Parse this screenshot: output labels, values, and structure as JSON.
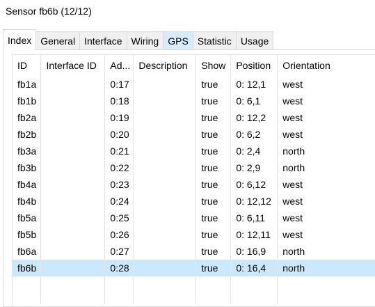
{
  "window": {
    "title": "Sensor fb6b (12/12)"
  },
  "tabs": [
    {
      "label": "Index",
      "active": true
    },
    {
      "label": "General"
    },
    {
      "label": "Interface"
    },
    {
      "label": "Wiring"
    },
    {
      "label": "GPS",
      "hover": true
    },
    {
      "label": "Statistic"
    },
    {
      "label": "Usage"
    }
  ],
  "table": {
    "columns": [
      "ID",
      "Interface ID",
      "Ad...",
      "Description",
      "Show",
      "Position",
      "Orientation"
    ],
    "rows": [
      [
        "fb1a",
        "",
        "0:17",
        "",
        "true",
        "0: 12,1",
        "west"
      ],
      [
        "fb1b",
        "",
        "0:18",
        "",
        "true",
        "0: 6,1",
        "west"
      ],
      [
        "fb2a",
        "",
        "0:19",
        "",
        "true",
        "0: 12,2",
        "west"
      ],
      [
        "fb2b",
        "",
        "0:20",
        "",
        "true",
        "0: 6,2",
        "west"
      ],
      [
        "fb3a",
        "",
        "0:21",
        "",
        "true",
        "0: 2,4",
        "north"
      ],
      [
        "fb3b",
        "",
        "0:22",
        "",
        "true",
        "0: 2,9",
        "north"
      ],
      [
        "fb4a",
        "",
        "0:23",
        "",
        "true",
        "0: 6,12",
        "west"
      ],
      [
        "fb4b",
        "",
        "0:24",
        "",
        "true",
        "0: 12,12",
        "west"
      ],
      [
        "fb5a",
        "",
        "0:25",
        "",
        "true",
        "0: 6,11",
        "west"
      ],
      [
        "fb5b",
        "",
        "0:26",
        "",
        "true",
        "0: 12,11",
        "west"
      ],
      [
        "fb6a",
        "",
        "0:27",
        "",
        "true",
        "0: 16,9",
        "north"
      ],
      [
        "fb6b",
        "",
        "0:28",
        "",
        "true",
        "0: 16,4",
        "north"
      ]
    ],
    "selected_row": 11,
    "selection_color": "#cce8ff"
  }
}
